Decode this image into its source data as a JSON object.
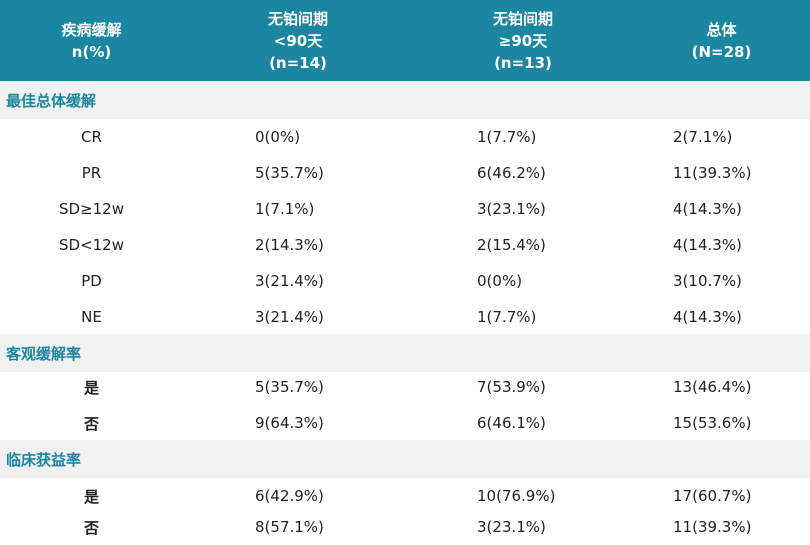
{
  "header": {
    "col0": [
      "疾病缓解",
      "n(%)"
    ],
    "col1": [
      "无铂间期",
      "<90天",
      "(n=14)"
    ],
    "col2": [
      "无铂间期",
      "≥90天",
      "(n=13)"
    ],
    "col3": [
      "总体",
      "(N=28)"
    ]
  },
  "sections": [
    {
      "title": "最佳总体缓解",
      "rows": [
        {
          "label": "CR",
          "c1": "0(0%)",
          "c2": "1(7.7%)",
          "c3": "2(7.1%)"
        },
        {
          "label": "PR",
          "c1": "5(35.7%)",
          "c2": "6(46.2%)",
          "c3": "11(39.3%)"
        },
        {
          "label": "SD≥12w",
          "c1": "1(7.1%)",
          "c2": "3(23.1%)",
          "c3": "4(14.3%)"
        },
        {
          "label": "SD<12w",
          "c1": "2(14.3%)",
          "c2": "2(15.4%)",
          "c3": "4(14.3%)"
        },
        {
          "label": "PD",
          "c1": "3(21.4%)",
          "c2": "0(0%)",
          "c3": "3(10.7%)"
        },
        {
          "label": "NE",
          "c1": "3(21.4%)",
          "c2": "1(7.7%)",
          "c3": "4(14.3%)"
        }
      ]
    },
    {
      "title": "客观缓解率",
      "rows": [
        {
          "label": "是",
          "c1": "5(35.7%)",
          "c2": "7(53.9%)",
          "c3": "13(46.4%)"
        },
        {
          "label": "否",
          "c1": "9(64.3%)",
          "c2": "6(46.1%)",
          "c3": "15(53.6%)"
        }
      ]
    },
    {
      "title": "临床获益率",
      "rows": [
        {
          "label": "是",
          "c1": "6(42.9%)",
          "c2": "10(76.9%)",
          "c3": "17(60.7%)"
        },
        {
          "label": "否",
          "c1": "8(57.1%)",
          "c2": "3(23.1%)",
          "c3": "11(39.3%)"
        }
      ]
    }
  ],
  "colors": {
    "header_bg": "#1b86a1",
    "section_bg": "#f1f1f1",
    "section_text": "#1b86a1"
  }
}
